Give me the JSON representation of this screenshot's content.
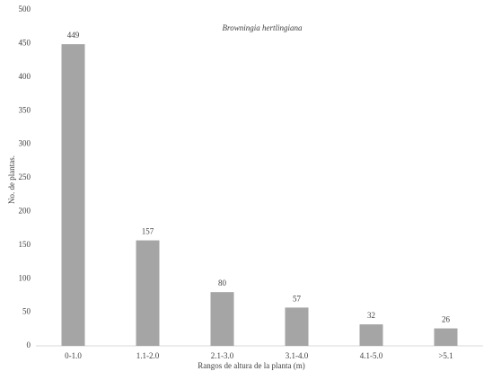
{
  "chart_data": {
    "type": "bar",
    "title": "Browningia hertlingiana",
    "x_label": "Rangos de altura  de la planta (m)",
    "y_label": "No. de plantas.",
    "categories": [
      "0-1.0",
      "1.1-2.0",
      "2.1-3.0",
      "3.1-4.0",
      "4.1-5.0",
      ">5.1"
    ],
    "values": [
      449,
      157,
      80,
      57,
      32,
      26
    ],
    "color": "#a5a5a5",
    "ylim": [
      0,
      500
    ],
    "yticks": [
      0,
      50,
      100,
      150,
      200,
      250,
      300,
      350,
      400,
      450,
      500
    ],
    "grid": false
  }
}
